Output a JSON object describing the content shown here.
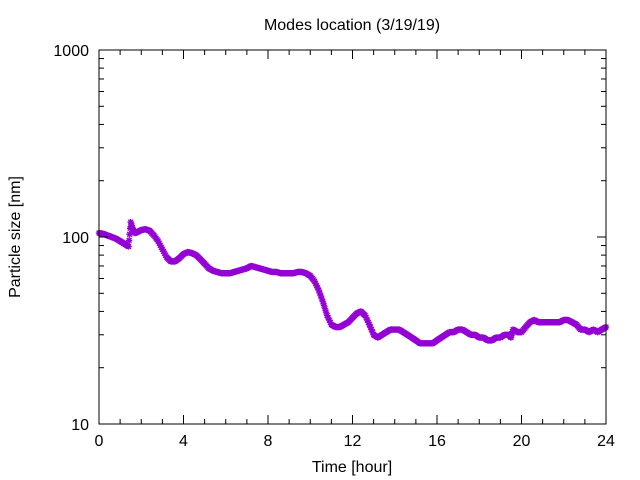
{
  "chart_data": {
    "type": "scatter",
    "title": "Modes location (3/19/19)",
    "xlabel": "Time [hour]",
    "ylabel": "Particle size [nm]",
    "xlim": [
      0,
      24
    ],
    "ylim": [
      10,
      1000
    ],
    "yscale": "log",
    "grid": false,
    "legend": "none",
    "x_ticks": [
      "0",
      "4",
      "8",
      "12",
      "16",
      "20",
      "24"
    ],
    "y_ticks": [
      "10",
      "100",
      "1000"
    ],
    "marker_color": "#9400d3",
    "series": [
      {
        "x": [
          0.0,
          0.2,
          0.4,
          0.6,
          0.8,
          1.0,
          1.2,
          1.4,
          1.5,
          1.6,
          1.7,
          1.8,
          2.0,
          2.2,
          2.4,
          2.6,
          2.8,
          3.0,
          3.2,
          3.4,
          3.6,
          3.8,
          4.0,
          4.2,
          4.4,
          4.6,
          4.8,
          5.0,
          5.2,
          5.4,
          5.6,
          5.8,
          6.0,
          6.2,
          6.4,
          6.6,
          6.8,
          7.0,
          7.2,
          7.4,
          7.6,
          7.8,
          8.0,
          8.2,
          8.4,
          8.6,
          8.8,
          9.0,
          9.2,
          9.4,
          9.6,
          9.8,
          10.0,
          10.2,
          10.4,
          10.6,
          10.8,
          11.0,
          11.2,
          11.4,
          11.6,
          11.8,
          12.0,
          12.2,
          12.4,
          12.6,
          12.8,
          13.0,
          13.2,
          13.4,
          13.6,
          13.8,
          14.0,
          14.2,
          14.4,
          14.6,
          14.8,
          15.0,
          15.2,
          15.4,
          15.6,
          15.8,
          16.0,
          16.2,
          16.4,
          16.6,
          16.8,
          17.0,
          17.2,
          17.4,
          17.6,
          17.8,
          18.0,
          18.2,
          18.4,
          18.6,
          18.8,
          19.0,
          19.2,
          19.4,
          19.5,
          19.6,
          19.8,
          20.0,
          20.2,
          20.4,
          20.6,
          20.8,
          21.0,
          21.2,
          21.4,
          21.6,
          21.8,
          22.0,
          22.2,
          22.4,
          22.6,
          22.8,
          23.0,
          23.2,
          23.4,
          23.6,
          23.8,
          24.0
        ],
        "y": [
          105,
          104,
          102,
          100,
          98,
          95,
          92,
          89,
          120,
          110,
          105,
          106,
          109,
          110,
          108,
          102,
          95,
          86,
          78,
          74,
          74,
          77,
          81,
          83,
          82,
          80,
          76,
          72,
          68,
          66,
          65,
          64,
          64,
          64,
          65,
          66,
          67,
          68,
          70,
          69,
          68,
          67,
          66,
          65,
          65,
          64,
          64,
          64,
          64,
          65,
          65,
          64,
          62,
          58,
          52,
          45,
          38,
          34,
          33,
          33,
          34,
          35,
          37,
          39,
          40,
          38,
          34,
          30,
          29,
          30,
          31,
          32,
          32,
          32,
          31,
          30,
          29,
          28,
          27,
          27,
          27,
          27,
          28,
          29,
          30,
          31,
          31,
          32,
          32,
          31,
          30,
          30,
          29,
          29,
          28,
          28,
          29,
          29,
          30,
          30,
          29,
          32,
          31,
          31,
          33,
          35,
          36,
          35,
          35,
          35,
          35,
          35,
          35,
          36,
          36,
          35,
          34,
          32,
          32,
          31,
          32,
          31,
          32,
          33
        ]
      }
    ]
  }
}
